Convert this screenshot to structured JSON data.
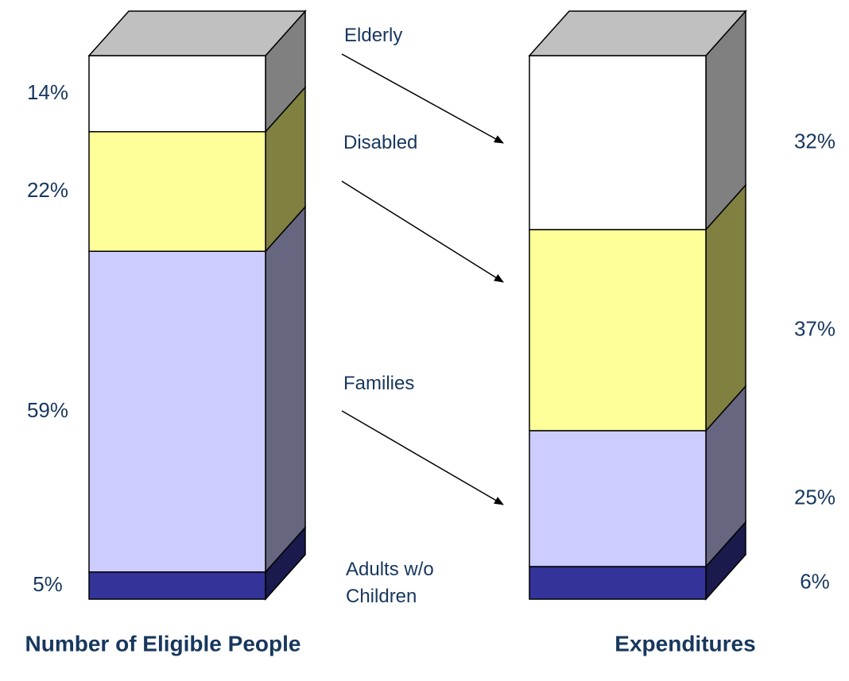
{
  "chart_data": {
    "type": "stacked-bar-3d",
    "categories": [
      "Number of Eligible People",
      "Expenditures"
    ],
    "ylim": [
      0,
      100
    ],
    "series": [
      {
        "name": "Adults w/o Children",
        "color": "#333399",
        "side_color": "#1a1a4d",
        "values": [
          5,
          6
        ],
        "value_labels": [
          "5%",
          "6%"
        ]
      },
      {
        "name": "Families",
        "color": "#ccccff",
        "side_color": "#666680",
        "values": [
          59,
          25
        ],
        "value_labels": [
          "59%",
          "25%"
        ]
      },
      {
        "name": "Disabled",
        "color": "#ffff99",
        "side_color": "#808040",
        "values": [
          22,
          37
        ],
        "value_labels": [
          "22%",
          "37%"
        ]
      },
      {
        "name": "Elderly",
        "color": "#ffffff",
        "side_color": "#808080",
        "values": [
          14,
          32
        ],
        "value_labels": [
          "14%",
          "32%"
        ]
      }
    ]
  }
}
